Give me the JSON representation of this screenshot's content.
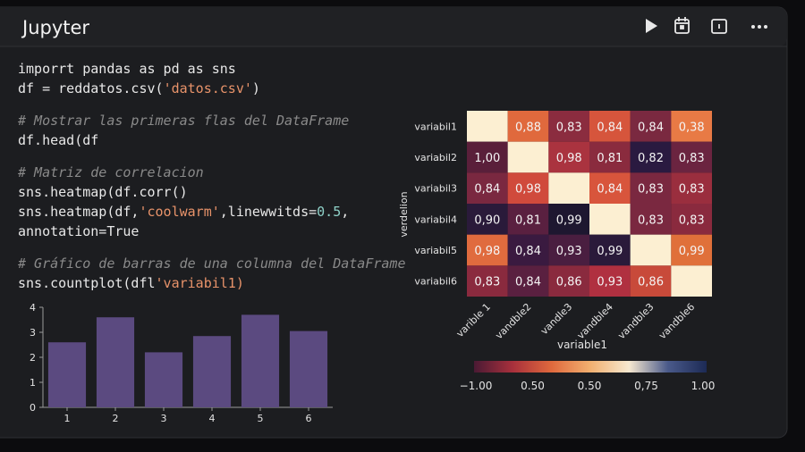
{
  "header": {
    "title": "Jupyter"
  },
  "code": {
    "blocks": [
      [
        "imporrt pandas as pd as sns",
        "df = reddatos.csv('datos.csv')"
      ],
      [
        "# Mostrar las primeras flas del DataFrame",
        "df.head(df"
      ],
      [
        "# Matriz de correlacion",
        "sns.heatmap(df.corr()",
        "  sns.heatmap(df,'coolwarm',linewwitds=0.5,",
        "    annotation=True"
      ],
      [
        "# Gráfico de barras de una columna del DataFrame",
        "sns.countplot(dfl'variabil1)"
      ]
    ]
  },
  "chart_data": [
    {
      "type": "bar",
      "categories": [
        "1",
        "2",
        "3",
        "4",
        "5",
        "6"
      ],
      "values": [
        2.6,
        3.6,
        2.2,
        2.85,
        3.7,
        3.05
      ],
      "color": "#5b4a80",
      "ylim": [
        0,
        4
      ],
      "yticks": [
        0,
        1,
        2,
        3,
        4
      ]
    },
    {
      "type": "heatmap",
      "categories": [
        "varible 1",
        "vandble2",
        "vandle3",
        "vandble4",
        "vandble3",
        "vandble6"
      ],
      "y_categories": [
        "variabil1",
        "variabil2",
        "variabil3",
        "variabil4",
        "variabil5",
        "variabil6"
      ],
      "xlabel": "variable1",
      "ylabel": "verdelion",
      "values": [
        [
          null,
          0.88,
          0.83,
          0.84,
          0.84,
          0.38
        ],
        [
          1.0,
          null,
          0.98,
          0.81,
          0.82,
          0.83
        ],
        [
          0.84,
          0.98,
          null,
          0.84,
          0.83,
          0.83
        ],
        [
          0.9,
          0.81,
          0.99,
          null,
          0.83,
          0.83
        ],
        [
          0.98,
          0.84,
          0.93,
          0.99,
          null,
          0.99
        ],
        [
          0.83,
          0.84,
          0.86,
          0.93,
          0.86,
          null
        ]
      ],
      "value_labels": [
        [
          null,
          "0,88",
          "0,83",
          "0,84",
          "0,84",
          "0,38"
        ],
        [
          "1,00",
          null,
          "0,98",
          "0,81",
          "0,82",
          "0,83"
        ],
        [
          "0,84",
          "0,98",
          null,
          "0,84",
          "0,83",
          "0,83"
        ],
        [
          "0,90",
          "0,81",
          "0,99",
          null,
          "0,83",
          "0,83"
        ],
        [
          "0,98",
          "0,84",
          "0,93",
          "0,99",
          null,
          "0,99"
        ],
        [
          "0,83",
          "0,84",
          "0,86",
          "0,93",
          "0,86",
          null
        ]
      ],
      "colors": [
        [
          null,
          "#e0693d",
          "#8b2c3f",
          "#d6553c",
          "#7a2940",
          "#e87a45"
        ],
        [
          "#5a1f3a",
          null,
          "#aa333f",
          "#8a2b3e",
          "#2a1a40",
          "#6b2440"
        ],
        [
          "#7a2840",
          "#d04a3c",
          null,
          "#d8553c",
          "#7a2840",
          "#9a2e3e"
        ],
        [
          "#2a1a3a",
          "#5a2040",
          "#1e1730",
          null,
          "#7a2840",
          "#8a2a3e"
        ],
        [
          "#e06b3e",
          "#3a1a40",
          "#4a1e40",
          "#2a1a3a",
          null,
          "#e0703a"
        ],
        [
          "#8a2a3e",
          "#5a2040",
          "#8a2a3e",
          "#b03040",
          "#c84a3a",
          null
        ]
      ],
      "empty_color": "#fcefd2",
      "colorbar_colors": [
        "#4a1a34",
        "#a8303c",
        "#e0693d",
        "#f2b070",
        "#f6e8d0",
        "#4a5a8a",
        "#1c2a55"
      ],
      "colorbar_labels": [
        "−1.00",
        "0.50",
        "0.50",
        "0,75",
        "1.00"
      ]
    }
  ]
}
